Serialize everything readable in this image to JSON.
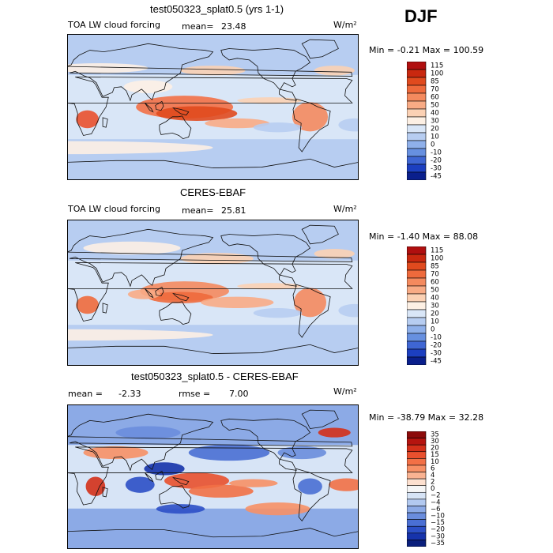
{
  "season": "DJF",
  "chart_data": [
    {
      "type": "heatmap",
      "title": "test050323_splat0.5 (yrs 1-1)",
      "field_label": "TOA LW cloud forcing",
      "mean_label": "mean=",
      "mean": "23.48",
      "units": "W/m²",
      "min_max_text": "Min =  -0.21 Max = 100.59",
      "min": -0.21,
      "max": 100.59,
      "colorbar_levels": [
        "115",
        "100",
        "85",
        "70",
        "60",
        "50",
        "40",
        "30",
        "20",
        "10",
        "0",
        "-10",
        "-20",
        "-30",
        "-45"
      ],
      "colorbar_colors": [
        "#b00f0f",
        "#c9280f",
        "#e04a1e",
        "#ee6a3c",
        "#f48a5e",
        "#f8ab85",
        "#fbd1b4",
        "#fdf0e4",
        "#d9e6f7",
        "#b7cdf1",
        "#8fb0ea",
        "#6790e0",
        "#3f66d3",
        "#1c3fc0",
        "#0a1f8c"
      ]
    },
    {
      "type": "heatmap",
      "title": "CERES-EBAF",
      "field_label": "TOA LW cloud forcing",
      "mean_label": "mean=",
      "mean": "25.81",
      "units": "W/m²",
      "min_max_text": "Min =  -1.40 Max =  88.08",
      "min": -1.4,
      "max": 88.08,
      "colorbar_levels": [
        "115",
        "100",
        "85",
        "70",
        "60",
        "50",
        "40",
        "30",
        "20",
        "10",
        "0",
        "-10",
        "-20",
        "-30",
        "-45"
      ],
      "colorbar_colors": [
        "#b00f0f",
        "#c9280f",
        "#e04a1e",
        "#ee6a3c",
        "#f48a5e",
        "#f8ab85",
        "#fbd1b4",
        "#fdf0e4",
        "#d9e6f7",
        "#b7cdf1",
        "#8fb0ea",
        "#6790e0",
        "#3f66d3",
        "#1c3fc0",
        "#0a1f8c"
      ]
    },
    {
      "type": "heatmap",
      "title": "test050323_splat0.5 - CERES-EBAF",
      "mean_label": "mean =",
      "mean": "-2.33",
      "rmse_label": "rmse =",
      "rmse": "7.00",
      "units": "W/m²",
      "min_max_text": "Min = -38.79 Max =  32.28",
      "min": -38.79,
      "max": 32.28,
      "colorbar_levels": [
        "35",
        "30",
        "20",
        "15",
        "10",
        "6",
        "4",
        "2",
        "0",
        "−2",
        "−4",
        "−6",
        "−10",
        "−15",
        "−20",
        "−30",
        "−35"
      ],
      "colorbar_colors": [
        "#8c0b0b",
        "#b5140f",
        "#d4301a",
        "#e9502e",
        "#f27046",
        "#f79066",
        "#fab392",
        "#fde0cf",
        "#f6f6f6",
        "#d7e4f6",
        "#b2c9f0",
        "#8caae6",
        "#6a8ddd",
        "#4a6fd4",
        "#2c4fc6",
        "#1633ab",
        "#0a1f7c"
      ]
    }
  ]
}
